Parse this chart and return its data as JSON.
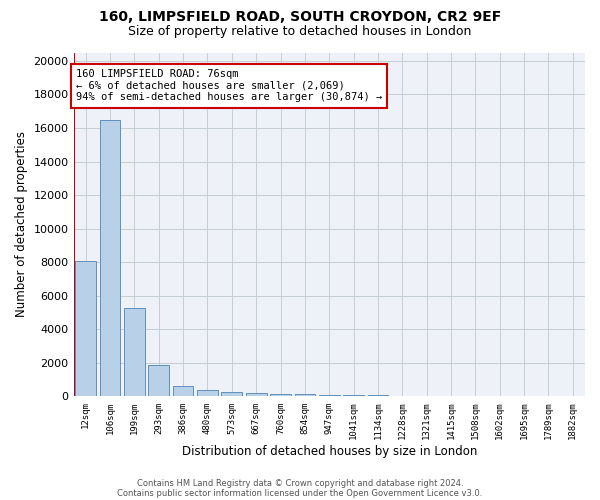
{
  "title1": "160, LIMPSFIELD ROAD, SOUTH CROYDON, CR2 9EF",
  "title2": "Size of property relative to detached houses in London",
  "xlabel": "Distribution of detached houses by size in London",
  "ylabel": "Number of detached properties",
  "categories": [
    "12sqm",
    "106sqm",
    "199sqm",
    "293sqm",
    "386sqm",
    "480sqm",
    "573sqm",
    "667sqm",
    "760sqm",
    "854sqm",
    "947sqm",
    "1041sqm",
    "1134sqm",
    "1228sqm",
    "1321sqm",
    "1415sqm",
    "1508sqm",
    "1602sqm",
    "1695sqm",
    "1789sqm",
    "1882sqm"
  ],
  "values": [
    8100,
    16500,
    5300,
    1850,
    650,
    380,
    280,
    200,
    160,
    130,
    110,
    85,
    65,
    50,
    40,
    30,
    22,
    18,
    14,
    10,
    8
  ],
  "bar_color": "#b8d0e8",
  "bar_edge_color": "#6090c0",
  "annotation_text": "160 LIMPSFIELD ROAD: 76sqm\n← 6% of detached houses are smaller (2,069)\n94% of semi-detached houses are larger (30,874) →",
  "annotation_box_color": "white",
  "annotation_border_color": "#cc0000",
  "ylim": [
    0,
    20500
  ],
  "yticks": [
    0,
    2000,
    4000,
    6000,
    8000,
    10000,
    12000,
    14000,
    16000,
    18000,
    20000
  ],
  "footer1": "Contains HM Land Registry data © Crown copyright and database right 2024.",
  "footer2": "Contains public sector information licensed under the Open Government Licence v3.0.",
  "bg_color": "#eef2f8",
  "grid_color": "#c5cdd8",
  "red_line_color": "#cc0000",
  "title_fontsize": 10,
  "subtitle_fontsize": 9,
  "red_line_x": -0.5
}
